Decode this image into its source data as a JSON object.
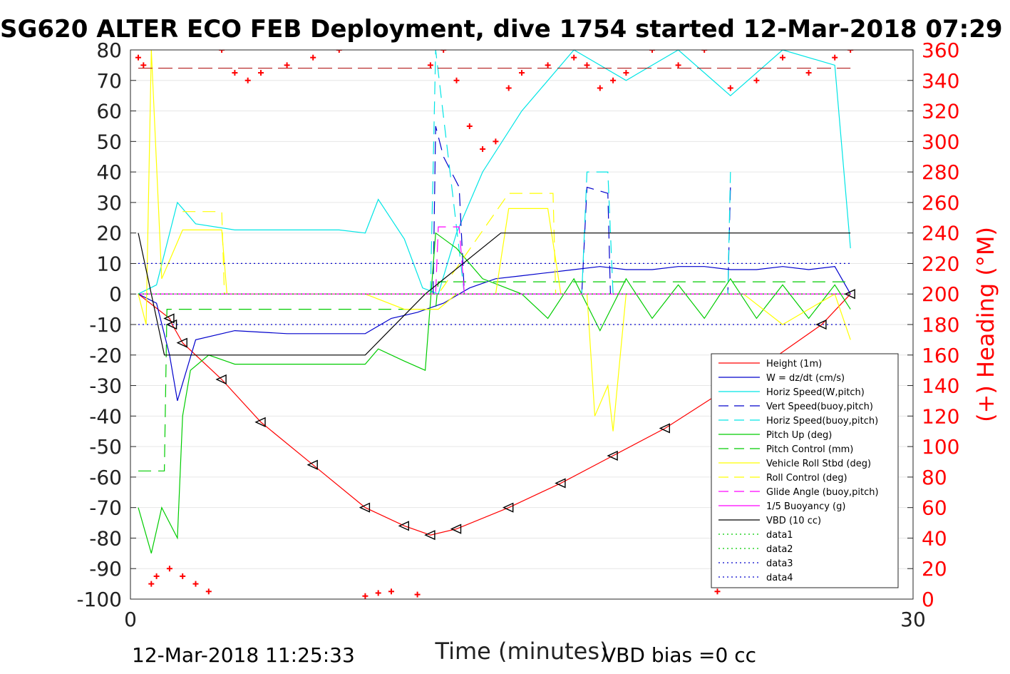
{
  "chart_data": {
    "type": "line",
    "title": "SG620 ALTER ECO FEB Deployment, dive 1754 started 12-Mar-2018 07:29",
    "xlabel": "Time (minutes)",
    "ylabel_right": "(+) Heading (°M)",
    "xlim": [
      0,
      30
    ],
    "ylim": [
      -100,
      80
    ],
    "ylim_right": [
      0,
      360
    ],
    "x_ticks": [
      "0",
      "30"
    ],
    "y_ticks": [
      "80",
      "70",
      "60",
      "50",
      "40",
      "30",
      "20",
      "10",
      "0",
      "-10",
      "-20",
      "-30",
      "-40",
      "-50",
      "-60",
      "-70",
      "-80",
      "-90",
      "-100"
    ],
    "y_ticks_right": [
      "360",
      "340",
      "320",
      "300",
      "280",
      "260",
      "240",
      "220",
      "200",
      "180",
      "160",
      "140",
      "120",
      "100",
      "80",
      "60",
      "40",
      "20",
      "0"
    ],
    "grid": true,
    "legend_position": "lower-right",
    "series": [
      {
        "name": "Height (1m)",
        "color": "#ff0000",
        "style": "solid",
        "x": [
          0.3,
          1.5,
          1.6,
          2.0,
          3.5,
          5.0,
          7.0,
          9.0,
          10.5,
          11.5,
          12.5,
          14.5,
          16.5,
          18.5,
          20.5,
          22.5,
          24.5,
          26.5,
          27.6
        ],
        "y": [
          0,
          -8,
          -10,
          -16,
          -28,
          -42,
          -56,
          -70,
          -76,
          -79,
          -77,
          -70,
          -62,
          -53,
          -44,
          -33,
          -22,
          -10,
          0
        ]
      },
      {
        "name": "W = dz/dt (cm/s)",
        "color": "#0000cc",
        "style": "solid",
        "x": [
          0.3,
          1.0,
          1.5,
          1.8,
          2.5,
          4,
          6,
          8,
          9,
          10,
          11,
          12,
          13,
          14,
          15,
          16,
          17,
          18,
          19,
          20,
          21,
          22,
          23,
          24,
          25,
          26,
          27,
          27.6
        ],
        "y": [
          0,
          -3,
          -20,
          -35,
          -15,
          -12,
          -13,
          -13,
          -13,
          -8,
          -6,
          -3,
          2,
          5,
          6,
          7,
          8,
          9,
          8,
          8,
          9,
          9,
          8,
          8,
          9,
          8,
          9,
          0
        ]
      },
      {
        "name": "Horiz Speed(W,pitch)",
        "color": "#00e5e5",
        "style": "solid",
        "x": [
          0.3,
          1.0,
          1.8,
          2.5,
          4,
          6,
          8,
          9,
          9.5,
          10.5,
          11.2,
          11.8,
          12.5,
          13.5,
          15,
          17,
          19,
          21,
          23,
          25,
          27,
          27.6
        ],
        "y": [
          0,
          3,
          30,
          23,
          21,
          21,
          21,
          20,
          31,
          18,
          2,
          0,
          20,
          40,
          60,
          80,
          70,
          80,
          65,
          80,
          75,
          15
        ]
      },
      {
        "name": "Vert Speed(buoy,pitch)",
        "color": "#0000cc",
        "style": "dashed",
        "x": [
          11.6,
          11.7,
          12.0,
          12.6,
          12.8,
          17.3,
          17.5,
          18.3,
          18.4,
          22.9,
          23.0
        ],
        "y": [
          0,
          55,
          45,
          35,
          0,
          0,
          35,
          33,
          0,
          0,
          35
        ]
      },
      {
        "name": "Horiz Speed(buoy,pitch)",
        "color": "#00e5e5",
        "style": "dashed",
        "x": [
          11.5,
          11.7,
          12.8,
          17.3,
          17.5,
          18.3,
          18.5,
          22.9,
          23.0
        ],
        "y": [
          0,
          80,
          0,
          0,
          40,
          40,
          0,
          0,
          40
        ]
      },
      {
        "name": "Pitch Up (deg)",
        "color": "#00cc00",
        "style": "solid",
        "x": [
          0.3,
          0.8,
          1.2,
          1.8,
          2.0,
          2.3,
          3,
          4,
          6,
          8,
          9,
          9.5,
          10.5,
          11.3,
          11.7,
          12.5,
          13.5,
          15,
          16,
          17,
          18,
          19,
          20,
          21,
          22,
          23,
          24,
          25,
          26,
          27,
          27.6
        ],
        "y": [
          -70,
          -85,
          -70,
          -80,
          -40,
          -25,
          -20,
          -23,
          -23,
          -23,
          -23,
          -18,
          -22,
          -25,
          20,
          15,
          5,
          0,
          -8,
          5,
          -12,
          5,
          -8,
          3,
          -8,
          5,
          -8,
          3,
          -8,
          3,
          -5
        ]
      },
      {
        "name": "Pitch Control (mm)",
        "color": "#00cc00",
        "style": "dashed",
        "x": [
          0.3,
          1.3,
          1.4,
          11.7,
          11.8,
          27.6
        ],
        "y": [
          -58,
          -58,
          -5,
          -5,
          4,
          4
        ]
      },
      {
        "name": "Vehicle Roll Stbd (deg)",
        "color": "#ffff00",
        "style": "solid",
        "x": [
          0.3,
          0.6,
          0.8,
          1.2,
          2.0,
          3.5,
          3.7,
          4.0,
          9,
          10.5,
          11.8,
          12.5,
          14.0,
          14.5,
          16.0,
          16.5,
          17.5,
          17.8,
          18.3,
          18.5,
          19,
          22,
          23.5,
          25,
          27,
          27.6
        ],
        "y": [
          0,
          -10,
          80,
          5,
          21,
          21,
          0,
          0,
          0,
          -5,
          -5,
          0,
          0,
          28,
          28,
          0,
          0,
          -40,
          -30,
          -45,
          0,
          0,
          0,
          -10,
          0,
          -15
        ]
      },
      {
        "name": "Roll Control (deg)",
        "color": "#ffff00",
        "style": "dashed",
        "x": [
          2.0,
          3.5,
          3.6,
          11.7,
          11.8,
          14.5,
          16.2,
          16.3,
          27.6
        ],
        "y": [
          27,
          27,
          0,
          0,
          0,
          33,
          33,
          0,
          0
        ]
      },
      {
        "name": "Glide Angle (buoy,pitch)",
        "color": "#ff00ff",
        "style": "dashed",
        "x": [
          0.3,
          11.7,
          11.8,
          12.6,
          12.8,
          27.6
        ],
        "y": [
          0,
          0,
          22,
          22,
          0,
          0
        ]
      },
      {
        "name": "1/5 Buoyancy (g)",
        "color": "#ff00ff",
        "style": "solid",
        "x": [
          0.3,
          27.6
        ],
        "y": [
          0,
          0
        ]
      },
      {
        "name": "VBD (10 cc)",
        "color": "#000000",
        "style": "solid",
        "x": [
          0.3,
          1.3,
          9.0,
          11.3,
          14.2,
          27.6
        ],
        "y": [
          20,
          -20,
          -20,
          0,
          20,
          20
        ]
      },
      {
        "name": "data1",
        "color": "#00cc00",
        "style": "dotted",
        "x": [
          0.3,
          27.6
        ],
        "y": [
          0,
          0
        ]
      },
      {
        "name": "data2",
        "color": "#00cc00",
        "style": "dotted",
        "x": [
          0.3,
          27.6
        ],
        "y": [
          0,
          0
        ]
      },
      {
        "name": "data3",
        "color": "#0000cc",
        "style": "dotted",
        "x": [
          0.3,
          27.6
        ],
        "y": [
          10,
          10
        ]
      },
      {
        "name": "data4",
        "color": "#0000cc",
        "style": "dotted",
        "x": [
          0.3,
          27.6
        ],
        "y": [
          -10,
          -10
        ]
      }
    ],
    "heading_series": {
      "name": "Heading",
      "color": "#ff0000",
      "marker": "+",
      "x": [
        0.3,
        0.5,
        0.8,
        1.0,
        1.5,
        2.0,
        2.5,
        3.0,
        3.5,
        4.0,
        4.5,
        5.0,
        6.0,
        7.0,
        8.0,
        9.0,
        9.5,
        10.0,
        11.0,
        11.5,
        12.0,
        12.5,
        13.0,
        13.5,
        14.0,
        14.5,
        15.0,
        16.0,
        17.0,
        17.5,
        18.0,
        18.5,
        19.0,
        20.0,
        21.0,
        22.0,
        22.5,
        23.0,
        24.0,
        25.0,
        26.0,
        27.0,
        27.6
      ],
      "y": [
        355,
        350,
        10,
        15,
        20,
        15,
        10,
        5,
        360,
        345,
        340,
        345,
        350,
        355,
        360,
        2,
        4,
        5,
        3,
        350,
        360,
        340,
        310,
        295,
        300,
        335,
        345,
        350,
        355,
        350,
        335,
        340,
        345,
        360,
        350,
        360,
        5,
        335,
        340,
        355,
        345,
        355,
        360
      ]
    },
    "heading_reference": 348
  },
  "footer": {
    "start_time": "12-Mar-2018 11:25:33",
    "vbd_bias": "VBD bias =0 cc"
  }
}
